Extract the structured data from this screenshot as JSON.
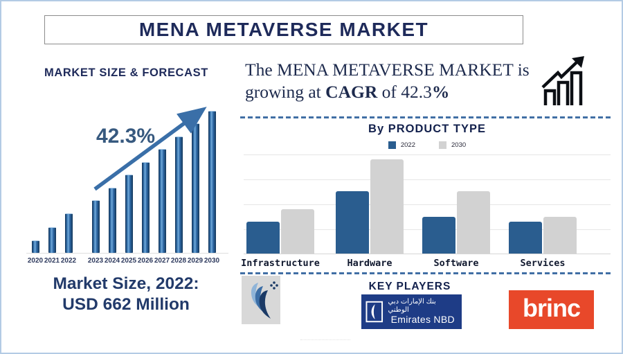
{
  "title": "MENA METAVERSE MARKET",
  "left_panel": {
    "section_title": "MARKET SIZE & FORECAST",
    "growth_label": "42.3%",
    "market_size_line1": "Market Size, 2022:",
    "market_size_line2": "USD 662 Million"
  },
  "right_panel": {
    "headline_line1": "The MENA METAVERSE MARKET is",
    "headline_line2_pre": "growing at ",
    "headline_line2_bold1": "CAGR",
    "headline_line2_mid": " of 42.3",
    "headline_line2_bold2": "%",
    "product_section_title": "By PRODUCT TYPE"
  },
  "key_players": {
    "section_title": "KEY PLAYERS",
    "emirates_nbd_arabic": "بنك الإمارات دبي الوطني",
    "emirates_nbd_english": "Emirates NBD",
    "brinc_label": "brinc"
  },
  "colors": {
    "navy_text": "#1e2a5a",
    "year_bar_blue": "#2f6aa8",
    "trend_arrow_blue": "#3a6fa8",
    "dashed_separator_blue": "#416fa5",
    "emirates_nbd_navy": "#1e3c86",
    "brinc_orange": "#e8482a"
  },
  "chart_data": [
    {
      "type": "bar",
      "title": "MARKET SIZE & FORECAST",
      "categories": [
        "2020",
        "2021",
        "2022",
        "2023",
        "2024",
        "2025",
        "2026",
        "2027",
        "2028",
        "2029",
        "2030"
      ],
      "values_pct_of_max": [
        9,
        18,
        28,
        37,
        46,
        55,
        64,
        73,
        82,
        91,
        100
      ],
      "gap_after_index": 2,
      "annotation": "42.3% CAGR arrow rising across forecast bars",
      "known_value": "2022 = USD 662 Million",
      "bar_color": "#2f6aa8",
      "ylabel": "",
      "xlabel": "",
      "grid": false
    },
    {
      "type": "bar",
      "title": "By PRODUCT TYPE",
      "categories": [
        "Infrastructure",
        "Hardware",
        "Software",
        "Services"
      ],
      "series": [
        {
          "name": "2022",
          "color": "#2a5d8f",
          "values_pct_of_max": [
            34,
            66,
            39,
            34
          ]
        },
        {
          "name": "2030",
          "color": "#d2d2d2",
          "values_pct_of_max": [
            47,
            100,
            66,
            39
          ]
        }
      ],
      "grid": true,
      "legend_position": "top",
      "ylabel": "",
      "xlabel": ""
    }
  ]
}
